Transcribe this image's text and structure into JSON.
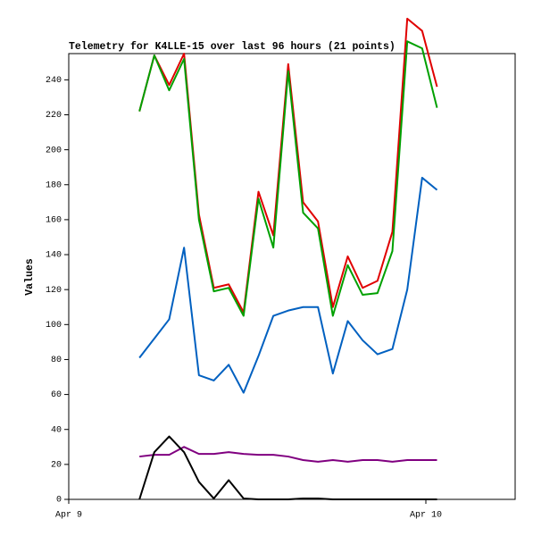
{
  "chart_data": {
    "type": "line",
    "title": "Telemetry for K4LLE-15 over last 96 hours (21 points)",
    "y_label": "Values",
    "x": [
      4.75,
      5.75,
      6.75,
      7.75,
      8.75,
      9.75,
      10.75,
      11.75,
      12.75,
      13.75,
      14.75,
      15.75,
      16.75,
      17.75,
      18.75,
      19.75,
      20.75,
      21.75,
      22.75,
      23.75,
      24.75
    ],
    "xlim": [
      0,
      30
    ],
    "xticks": [
      {
        "value": 0,
        "label": "Apr 9"
      },
      {
        "value": 24,
        "label": "Apr 10"
      }
    ],
    "ylim": [
      0,
      255
    ],
    "yticks": [
      0,
      20,
      40,
      60,
      80,
      100,
      120,
      140,
      160,
      180,
      200,
      220,
      240
    ],
    "series": [
      {
        "color": "#e00000",
        "values": [
          222,
          254,
          237,
          255,
          163,
          121,
          123,
          107,
          176,
          151,
          249,
          170,
          159,
          110,
          139,
          121,
          125,
          153,
          275,
          268,
          236
        ]
      },
      {
        "color": "#00a000",
        "values": [
          222,
          254,
          234,
          252,
          160,
          119,
          121,
          105,
          172,
          144,
          245,
          164,
          155,
          105,
          134,
          117,
          118,
          142,
          262,
          258,
          224
        ]
      },
      {
        "color": "#0060c0",
        "values": [
          81,
          92,
          103,
          144,
          71,
          68,
          77,
          61,
          82,
          105,
          108,
          110,
          110,
          72,
          102,
          91,
          83,
          86,
          120,
          184,
          177
        ]
      },
      {
        "color": "#800080",
        "values": [
          24.5,
          25.5,
          25.5,
          30,
          26,
          26,
          27,
          26,
          25.5,
          25.5,
          24.5,
          22.5,
          21.5,
          22.5,
          21.5,
          22.5,
          22.5,
          21.5,
          22.5,
          22.5,
          22.5
        ]
      },
      {
        "color": "#000000",
        "values": [
          0,
          27,
          36,
          27,
          10,
          0.5,
          11,
          0.5,
          0,
          0,
          0,
          0.5,
          0.5,
          0,
          0,
          0,
          0,
          0,
          0,
          0,
          0
        ]
      }
    ]
  }
}
